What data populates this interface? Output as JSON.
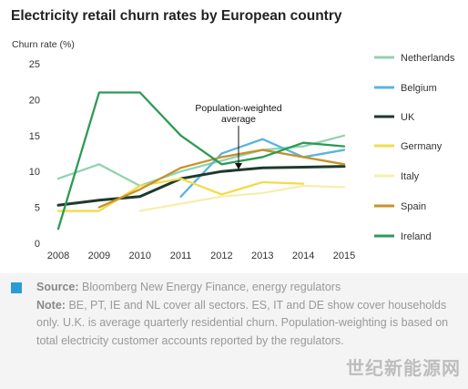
{
  "title": "Electricity retail churn rates by European country",
  "chart_data": {
    "type": "line",
    "title": "Electricity retail churn rates by European country",
    "ylabel": "Churn rate (%)",
    "xlabel": "",
    "x": [
      2008,
      2009,
      2010,
      2011,
      2012,
      2013,
      2014,
      2015
    ],
    "ylim": [
      0,
      25
    ],
    "yticks": [
      0,
      5,
      10,
      15,
      20,
      25
    ],
    "grid": false,
    "legend_placement": "right",
    "series": [
      {
        "name": "Netherlands",
        "color": "#8fd4b0",
        "values": [
          9,
          11,
          8,
          10,
          11.5,
          13,
          13.5,
          15
        ]
      },
      {
        "name": "Belgium",
        "color": "#5ab4dc",
        "values": [
          null,
          null,
          null,
          6.5,
          12.5,
          14.5,
          12,
          13
        ]
      },
      {
        "name": "UK",
        "color": "#1e3a2c",
        "values": [
          5.3,
          6,
          6.5,
          9,
          10,
          10.5,
          10.6,
          10.7
        ]
      },
      {
        "name": "Germany",
        "color": "#f2dc4a",
        "values": [
          4.5,
          4.5,
          8,
          9,
          6.8,
          8.5,
          8.3,
          null
        ]
      },
      {
        "name": "Italy",
        "color": "#f6eeb0",
        "values": [
          null,
          null,
          4.5,
          5.5,
          6.5,
          7,
          8,
          7.8
        ]
      },
      {
        "name": "Spain",
        "color": "#c8922c",
        "values": [
          null,
          5,
          7.5,
          10.5,
          12,
          13,
          12,
          11
        ]
      },
      {
        "name": "Ireland",
        "color": "#2e9a54",
        "values": [
          2,
          21,
          21,
          15,
          11,
          12,
          14,
          13.5
        ]
      }
    ],
    "annotation": {
      "text": "Population-weighted average",
      "line1": "Population-weighted",
      "line2": "average"
    }
  },
  "footer": {
    "source_label": "Source:",
    "source_text": "Bloomberg New Energy Finance, energy regulators",
    "note_label": "Note:",
    "note_text": "BE, PT, IE and NL cover all sectors. ES, IT and DE show cover households only. U.K. is average quarterly residential churn. Population-weighting is based on total electricity customer accounts reported by the regulators.",
    "source_color": "#2b9bd6"
  },
  "watermark": "世纪新能源网"
}
